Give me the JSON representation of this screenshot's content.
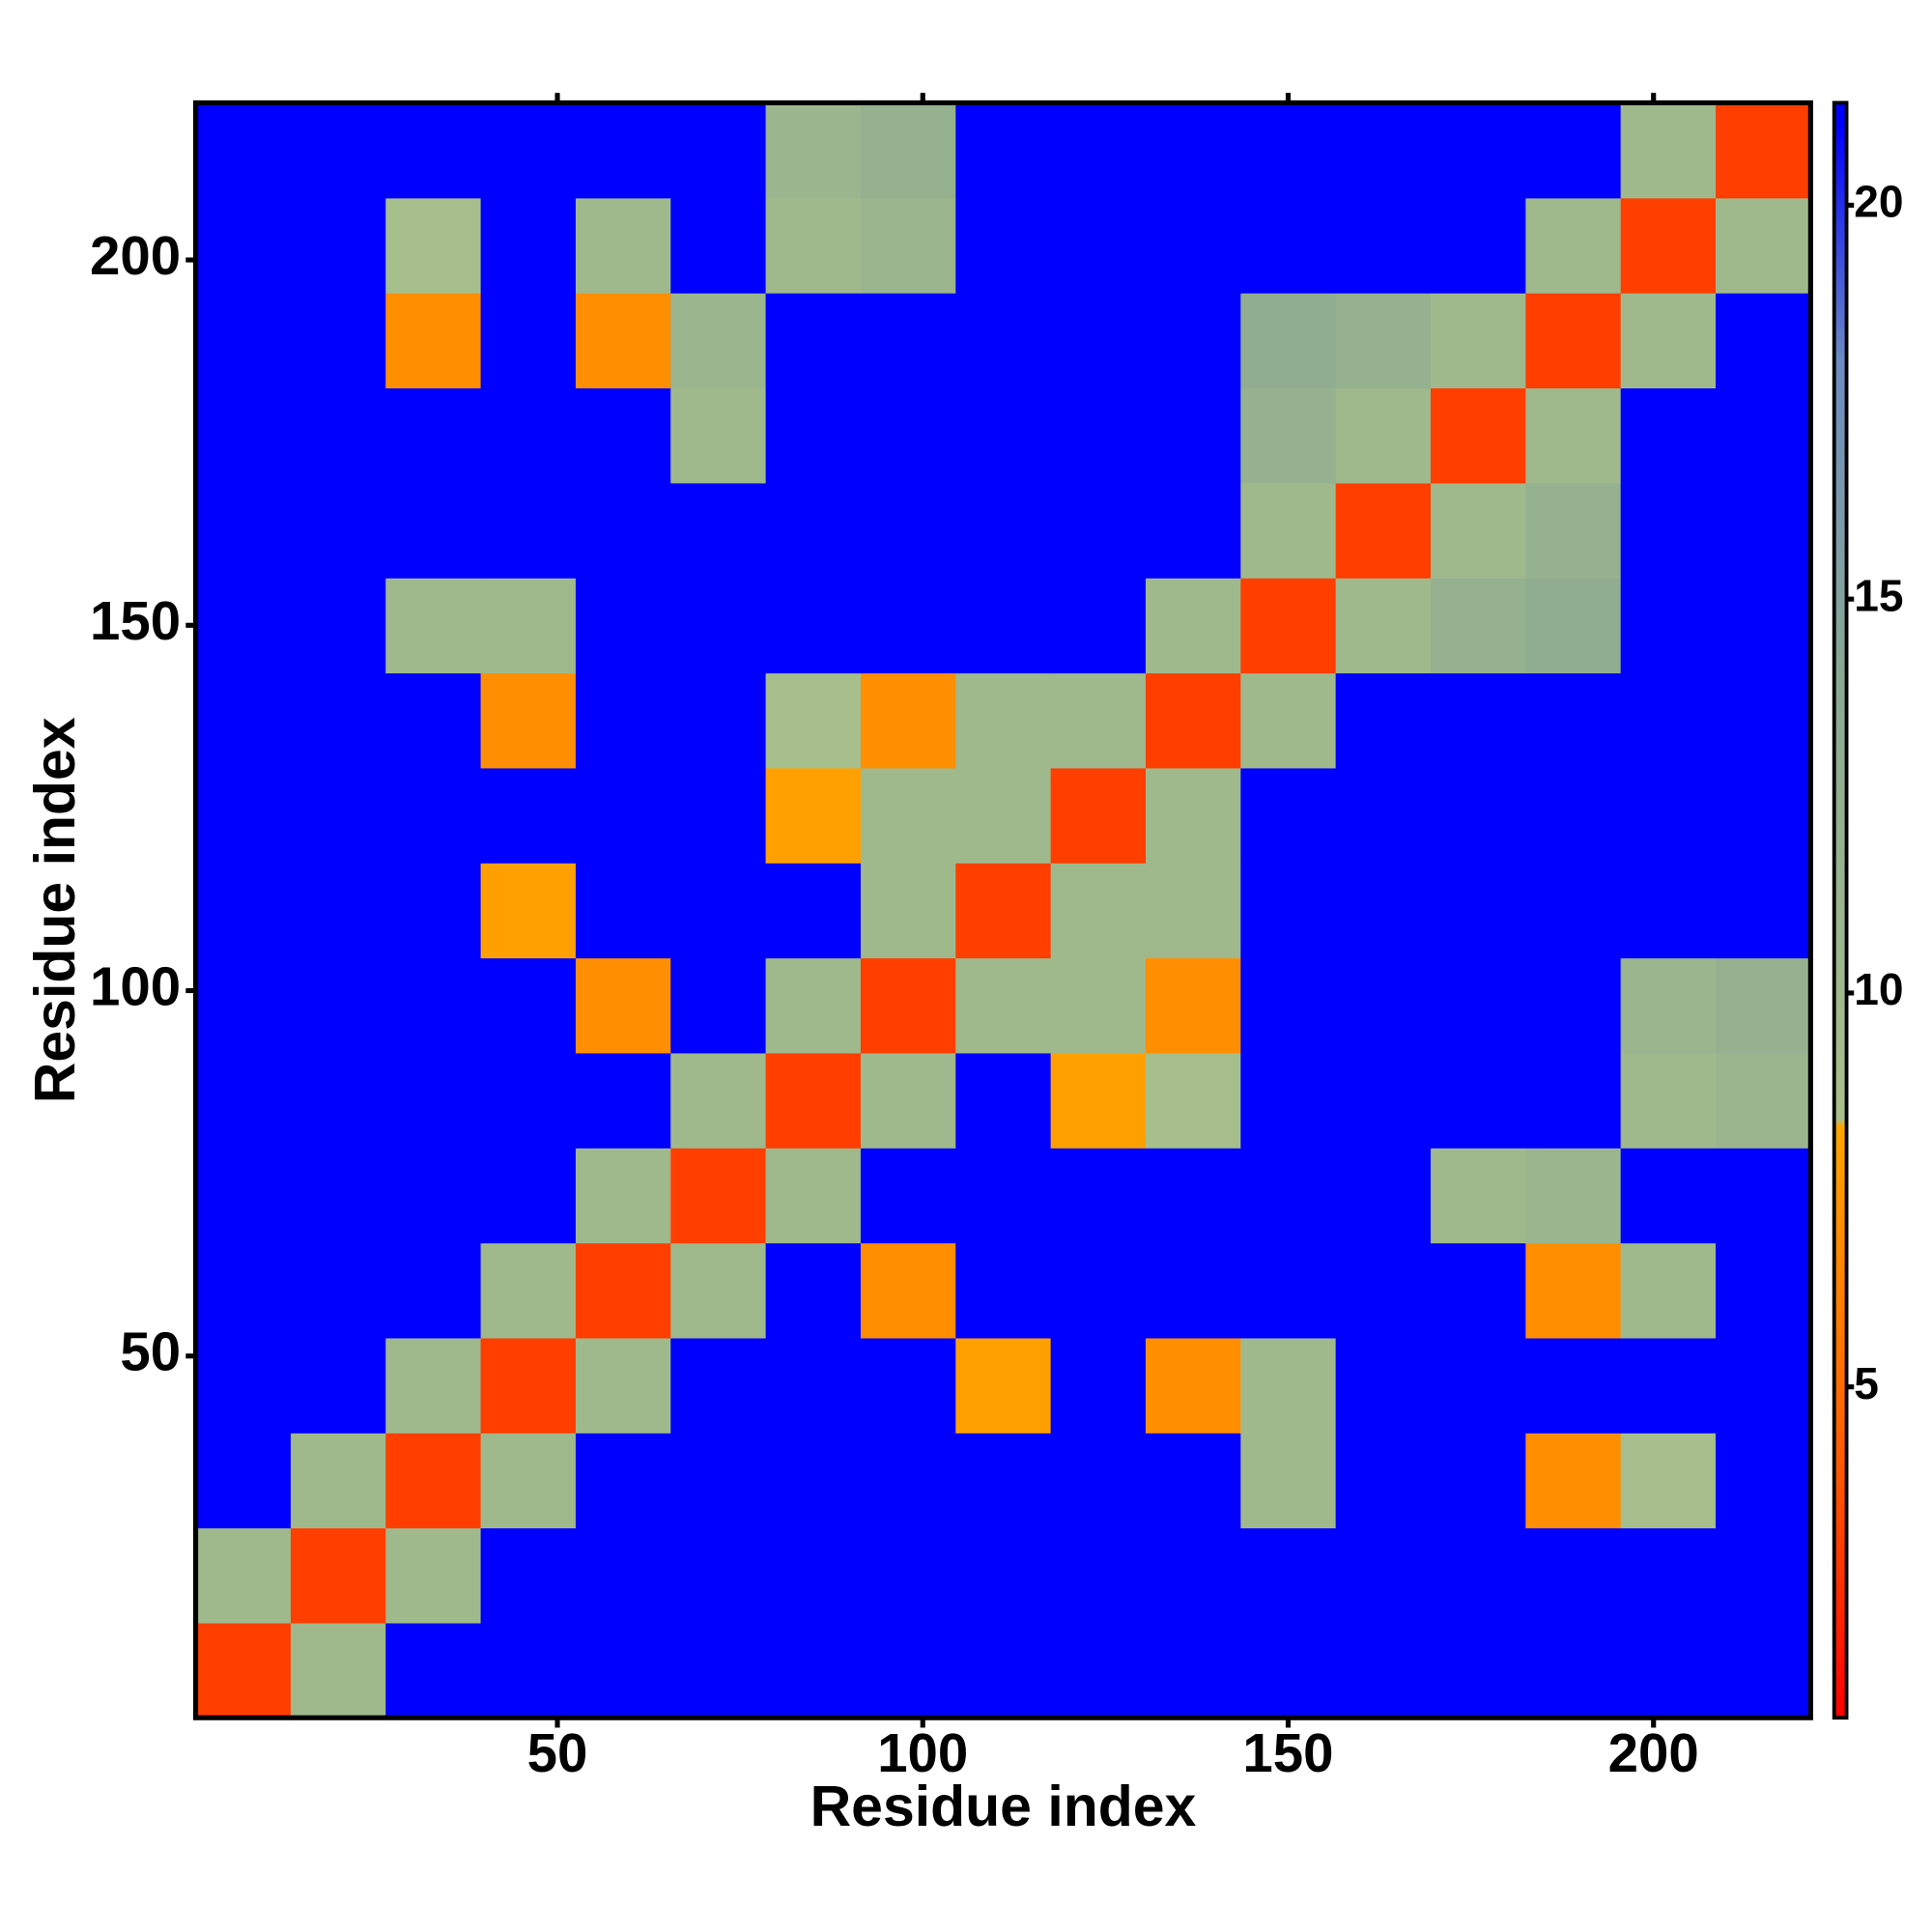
{
  "chart_data": {
    "type": "heatmap",
    "xlabel": "Residue index",
    "ylabel": "Residue index",
    "x_bins": [
      0.5,
      13.5,
      26.5,
      39.5,
      52.5,
      65.5,
      78.5,
      91.5,
      104.5,
      117.5,
      130.5,
      143.5,
      156.5,
      169.5,
      182.5,
      195.5,
      208.5,
      221.5
    ],
    "y_bins": [
      0.5,
      13.5,
      26.5,
      39.5,
      52.5,
      65.5,
      78.5,
      91.5,
      104.5,
      117.5,
      130.5,
      143.5,
      156.5,
      169.5,
      182.5,
      195.5,
      208.5,
      221.5
    ],
    "xlim": [
      0.5,
      221.5
    ],
    "ylim": [
      0.5,
      221.5
    ],
    "xticks": [
      50,
      100,
      150,
      200
    ],
    "yticks": [
      50,
      100,
      150,
      200
    ],
    "zlim": [
      0.8,
      21.3
    ],
    "zticks": [
      5,
      10,
      15,
      20
    ],
    "colorscale": [
      [
        0.8,
        "#ff0000"
      ],
      [
        4,
        "#ff5a00"
      ],
      [
        8.3,
        "#ffa500"
      ],
      [
        8.4,
        "#a9c08a"
      ],
      [
        14,
        "#8aa992"
      ],
      [
        18,
        "#6c8cc2"
      ],
      [
        21,
        "#0000ff"
      ]
    ],
    "z": [
      [
        3,
        10,
        21,
        21,
        21,
        21,
        21,
        21,
        21,
        21,
        21,
        21,
        21,
        21,
        21,
        21,
        21
      ],
      [
        10,
        3,
        10,
        21,
        21,
        21,
        21,
        21,
        21,
        21,
        21,
        21,
        21,
        21,
        21,
        21,
        21
      ],
      [
        21,
        10,
        3,
        10,
        21,
        21,
        21,
        21,
        21,
        21,
        21,
        10,
        21,
        21,
        7,
        9,
        21
      ],
      [
        21,
        21,
        10,
        3,
        10,
        21,
        21,
        21,
        8,
        21,
        7,
        10,
        21,
        21,
        21,
        21,
        21
      ],
      [
        21,
        21,
        21,
        10,
        3,
        10,
        21,
        7,
        21,
        21,
        21,
        21,
        21,
        21,
        7,
        10,
        21
      ],
      [
        21,
        21,
        21,
        21,
        10,
        3,
        10,
        21,
        21,
        21,
        21,
        21,
        21,
        10,
        11,
        21,
        21
      ],
      [
        21,
        21,
        21,
        21,
        21,
        10,
        3,
        10,
        21,
        8,
        9,
        21,
        21,
        21,
        21,
        10,
        11
      ],
      [
        21,
        21,
        21,
        21,
        7,
        21,
        10,
        3,
        10,
        10,
        7,
        21,
        21,
        21,
        21,
        11,
        12
      ],
      [
        21,
        21,
        21,
        8,
        21,
        21,
        21,
        10,
        3,
        10,
        10,
        21,
        21,
        21,
        21,
        21,
        21
      ],
      [
        21,
        21,
        21,
        21,
        21,
        21,
        8,
        10,
        10,
        3,
        10,
        21,
        21,
        21,
        21,
        21,
        21
      ],
      [
        21,
        21,
        21,
        7,
        21,
        21,
        9,
        7,
        10,
        10,
        3,
        10,
        21,
        21,
        21,
        21,
        21
      ],
      [
        21,
        21,
        10,
        10,
        21,
        21,
        21,
        21,
        21,
        21,
        10,
        3,
        10,
        12,
        13,
        21,
        21
      ],
      [
        21,
        21,
        21,
        21,
        21,
        21,
        21,
        21,
        21,
        21,
        21,
        10,
        3,
        10,
        12,
        21,
        21
      ],
      [
        21,
        21,
        21,
        21,
        21,
        10,
        21,
        21,
        21,
        21,
        21,
        12,
        10,
        3,
        10,
        21,
        21
      ],
      [
        21,
        21,
        7,
        21,
        7,
        11,
        21,
        21,
        21,
        21,
        21,
        13,
        12,
        10,
        3,
        10,
        21
      ],
      [
        21,
        21,
        9,
        21,
        10,
        21,
        10,
        11,
        21,
        21,
        21,
        21,
        21,
        21,
        10,
        3,
        10
      ],
      [
        21,
        21,
        21,
        21,
        21,
        21,
        11,
        12,
        21,
        21,
        21,
        21,
        21,
        21,
        21,
        10,
        3
      ]
    ]
  }
}
